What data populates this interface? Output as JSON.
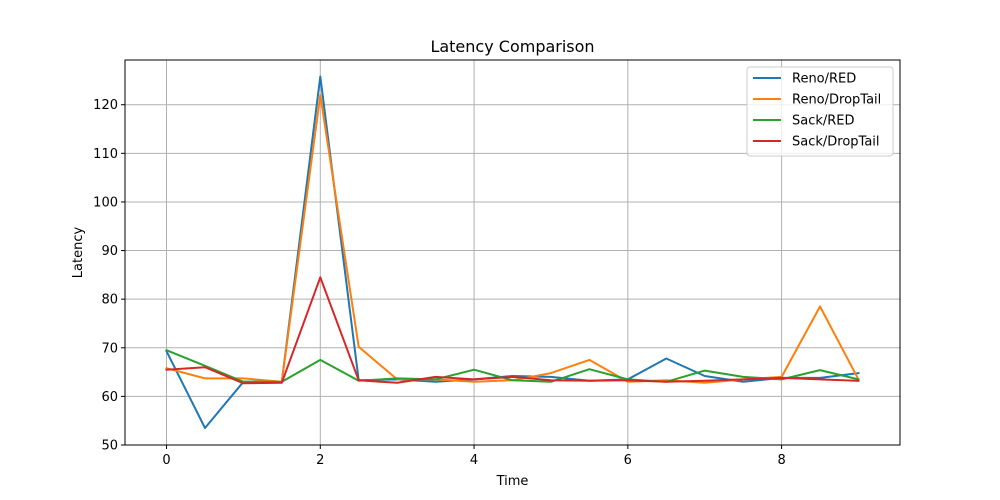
{
  "chart_data": {
    "type": "line",
    "title": "Latency Comparison",
    "xlabel": "Time",
    "ylabel": "Latency",
    "xlim": [
      -0.54,
      9.54
    ],
    "ylim": [
      50,
      129.2
    ],
    "xticks": [
      0,
      2,
      4,
      6,
      8
    ],
    "yticks": [
      50,
      60,
      70,
      80,
      90,
      100,
      110,
      120
    ],
    "grid": true,
    "legend_position": "top-right",
    "x": [
      0,
      0.5,
      1,
      1.5,
      2,
      2.5,
      3,
      3.5,
      4,
      4.5,
      5,
      5.5,
      6,
      6.5,
      7,
      7.5,
      8,
      8.5,
      9
    ],
    "series": [
      {
        "name": "Reno/RED",
        "color": "#1f77b4",
        "values": [
          69.3,
          53.5,
          63.0,
          63.0,
          125.8,
          63.3,
          63.5,
          63.0,
          63.5,
          64.2,
          64.0,
          63.2,
          63.5,
          67.8,
          64.2,
          63.0,
          63.8,
          63.8,
          64.8
        ]
      },
      {
        "name": "Reno/DropTail",
        "color": "#ff7f0e",
        "values": [
          65.8,
          63.7,
          63.7,
          63.0,
          122.0,
          70.2,
          63.5,
          63.5,
          63.0,
          63.3,
          64.8,
          67.5,
          63.0,
          63.3,
          62.8,
          63.5,
          64.0,
          78.5,
          63.5
        ]
      },
      {
        "name": "Sack/RED",
        "color": "#2ca02c",
        "values": [
          69.5,
          66.3,
          63.0,
          63.0,
          67.5,
          63.2,
          63.7,
          63.5,
          65.5,
          63.3,
          63.0,
          65.6,
          63.5,
          63.0,
          65.3,
          64.0,
          63.5,
          65.4,
          63.5
        ]
      },
      {
        "name": "Sack/DropTail",
        "color": "#d62728",
        "values": [
          65.5,
          66.0,
          62.7,
          62.8,
          84.5,
          63.3,
          62.8,
          64.0,
          63.5,
          64.0,
          63.3,
          63.2,
          63.3,
          63.0,
          63.2,
          63.5,
          63.8,
          63.5,
          63.2
        ]
      }
    ]
  }
}
